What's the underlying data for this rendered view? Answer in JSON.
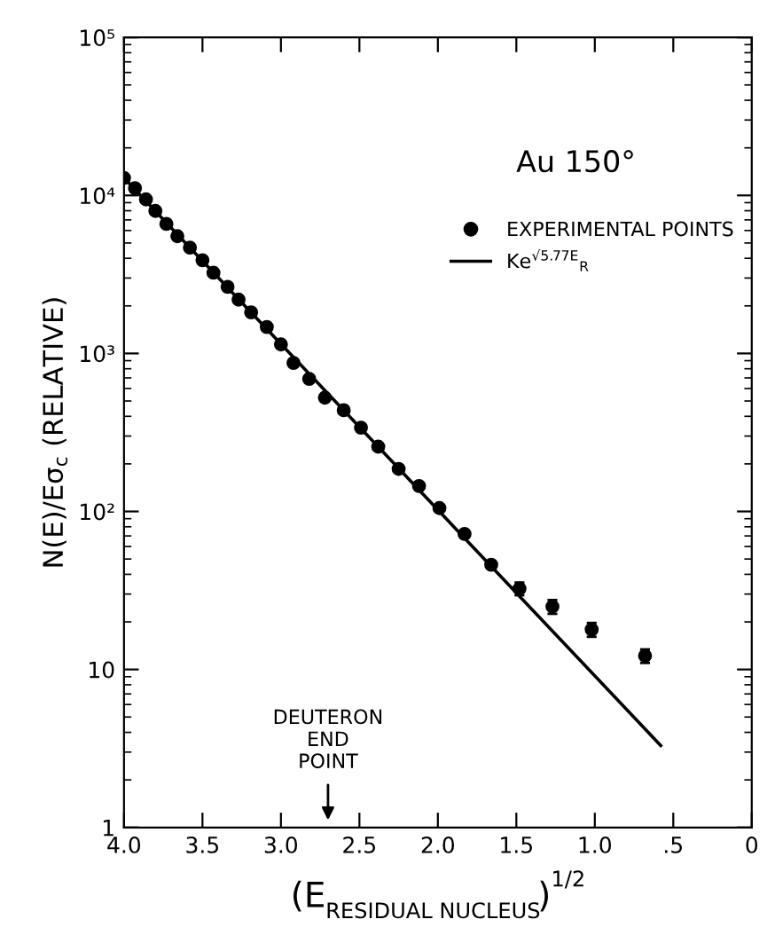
{
  "chart_data": {
    "type": "scatter",
    "title": "Au 150°",
    "xlabel": "(E$_{RESIDUAL NUCLEUS}$)$^{1/2}$",
    "ylabel": "N(E)/Eσ$_{c}$ (RELATIVE)",
    "series": [
      {
        "name": "EXPERIMENTAL POINTS",
        "color": "#000000",
        "marker": "circle",
        "x": [
          4.0,
          3.93,
          3.86,
          3.8,
          3.73,
          3.66,
          3.58,
          3.5,
          3.43,
          3.34,
          3.27,
          3.19,
          3.09,
          3.0,
          2.92,
          2.82,
          2.72,
          2.6,
          2.49,
          2.38,
          2.25,
          2.12,
          1.99,
          1.83,
          1.66,
          1.48,
          1.27,
          1.02,
          0.68
        ],
        "values": [
          12900,
          11100,
          9440,
          7980,
          6610,
          5520,
          4670,
          3890,
          3240,
          2640,
          2190,
          1820,
          1470,
          1140,
          870,
          690,
          525,
          437,
          339,
          257,
          186,
          145,
          105,
          72,
          46,
          32.5,
          25,
          17.9,
          12.2
        ],
        "errors": [
          null,
          null,
          null,
          null,
          null,
          null,
          null,
          null,
          null,
          null,
          null,
          null,
          null,
          null,
          null,
          null,
          null,
          null,
          null,
          null,
          null,
          null,
          null,
          null,
          null,
          3,
          2.5,
          1.8,
          1.2
        ]
      },
      {
        "name": "Ke$^{√5.77E}$$_{R}$",
        "type": "line",
        "color": "#000000",
        "line_style": "solid",
        "x": [
          4.0,
          0.58
        ],
        "values": [
          12900,
          3.3
        ]
      }
    ],
    "log": "y",
    "xlim": [
      4.0,
      0
    ],
    "ylim": [
      1,
      100000
    ],
    "xticks": [
      {
        "value": 4.0,
        "label": "4.0"
      },
      {
        "value": 3.5,
        "label": "3.5"
      },
      {
        "value": 3.0,
        "label": "3.0"
      },
      {
        "value": 2.5,
        "label": "2.5"
      },
      {
        "value": 2.0,
        "label": "2.0"
      },
      {
        "value": 1.5,
        "label": "1.5"
      },
      {
        "value": 1.0,
        "label": "1.0"
      },
      {
        "value": 0.5,
        "label": ".5"
      },
      {
        "value": 0,
        "label": "0"
      }
    ],
    "yticks": [
      1,
      10,
      {
        "value": 100,
        "label": "10²"
      },
      {
        "value": 1000,
        "label": "10³"
      },
      {
        "value": 10000,
        "label": "10⁴"
      },
      {
        "value": 100000,
        "label": "10⁵"
      }
    ],
    "annotations": [
      "DEUTERON\nEND\nPOINT"
    ],
    "legend": "top right",
    "grid": false
  }
}
